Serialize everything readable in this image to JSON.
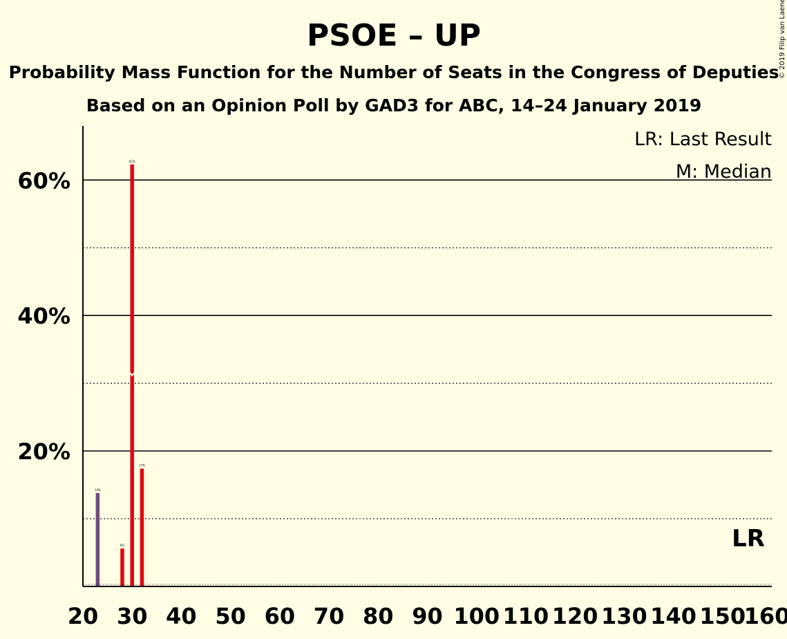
{
  "copyright": "© 2019 Filip van Laenen",
  "chart_data": {
    "type": "bar",
    "title": "PSOE – UP",
    "subtitle1": "Probability Mass Function for the Number of Seats in the Congress of Deputies",
    "subtitle2": "Based on an Opinion Poll by GAD3 for ABC, 14–24 January 2019",
    "legend_lr": "LR: Last Result",
    "legend_m": "M: Median",
    "lr_label": "LR",
    "xlim": [
      20,
      160
    ],
    "ylim": [
      0,
      68
    ],
    "x_ticks": [
      20,
      30,
      40,
      50,
      60,
      70,
      80,
      90,
      100,
      110,
      120,
      130,
      140,
      150,
      160
    ],
    "x_tick_labels": [
      "20",
      "30",
      "40",
      "50",
      "60",
      "70",
      "80",
      "90",
      "100",
      "110",
      "120",
      "130",
      "140",
      "150",
      "160"
    ],
    "y_solid_lines": [
      20,
      40,
      60
    ],
    "y_dotted_lines": [
      10,
      30,
      50
    ],
    "y_tick_labels": [
      "20%",
      "40%",
      "60%"
    ],
    "last_result_seat": 23,
    "median_seat": 30,
    "colors": {
      "background": "#FFFEE5",
      "bar_red": "#E30613",
      "bar_purple": "#6E4C7E",
      "axis": "#000000"
    },
    "bars": [
      {
        "x": 23,
        "value": 13.8,
        "label": "14%",
        "color": "purple"
      },
      {
        "x": 28,
        "value": 5.6,
        "label": "6%",
        "color": "red"
      },
      {
        "x": 30,
        "value": 62.3,
        "label": "62%",
        "color": "red"
      },
      {
        "x": 32,
        "value": 17.4,
        "label": "17%",
        "color": "red"
      }
    ]
  }
}
